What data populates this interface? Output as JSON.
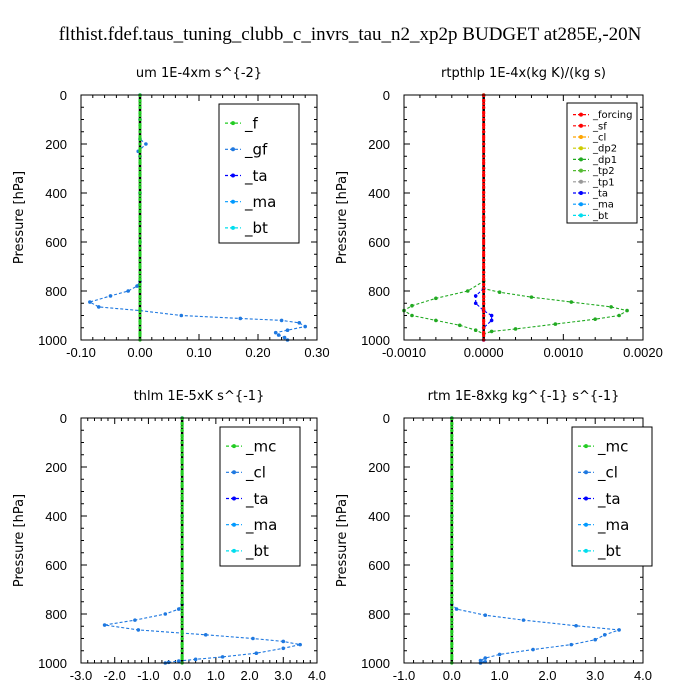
{
  "figure_title": "flthist.fdef.taus_tuning_clubb_c_invrs_tau_n2_xp2p  BUDGET at285E,-20N",
  "colors": {
    "forcing": "#ff0000",
    "sf": "#ff0000",
    "cl_orange": "#ffa500",
    "dp2": "#cccc00",
    "dp1": "#22aa22",
    "tp2": "#55bb33",
    "tp1": "#999999",
    "ta": "#0000ff",
    "ma": "#0099ff",
    "bt": "#00ddee",
    "mc": "#22cc22",
    "f": "#22cc22",
    "gf_cl_blue": "#1e78e0",
    "zero": "#000000"
  },
  "chart_data": [
    {
      "type": "line",
      "title": "um   1E-4xm s^{-2}",
      "ylabel": "Pressure [hPa]",
      "xlim": [
        -0.1,
        0.3
      ],
      "ylim": [
        1000,
        0
      ],
      "xticks": [
        "-0.10",
        "0.00",
        "0.10",
        "0.20",
        "0.30"
      ],
      "xtick_values": [
        -0.1,
        0.0,
        0.1,
        0.2,
        0.3
      ],
      "yticks": [
        "0",
        "200",
        "400",
        "600",
        "800",
        "1000"
      ],
      "ytick_values": [
        0,
        200,
        400,
        600,
        800,
        1000
      ],
      "legend": [
        "_f",
        "_gf",
        "_ta",
        "_ma",
        "_bt"
      ],
      "legend_size": "large",
      "series": [
        {
          "name": "_gf",
          "color_key": "gf_cl_blue",
          "points": [
            [
              0.0,
              0
            ],
            [
              0.0,
              100
            ],
            [
              0.0,
              180
            ],
            [
              0.01,
              200
            ],
            [
              -0.003,
              230
            ],
            [
              0.0,
              250
            ],
            [
              0.0,
              400
            ],
            [
              0.0,
              600
            ],
            [
              0.0,
              760
            ],
            [
              -0.005,
              780
            ],
            [
              -0.02,
              800
            ],
            [
              -0.05,
              820
            ],
            [
              -0.085,
              845
            ],
            [
              -0.07,
              865
            ],
            [
              0.0,
              880
            ],
            [
              0.07,
              900
            ],
            [
              0.17,
              912
            ],
            [
              0.24,
              920
            ],
            [
              0.27,
              930
            ],
            [
              0.28,
              945
            ],
            [
              0.25,
              960
            ],
            [
              0.23,
              970
            ],
            [
              0.235,
              980
            ],
            [
              0.245,
              990
            ],
            [
              0.25,
              1000
            ]
          ]
        },
        {
          "name": "_f",
          "color_key": "f",
          "points": [
            [
              0.0,
              0
            ],
            [
              0.0,
              200
            ],
            [
              0.0,
              400
            ],
            [
              0.0,
              600
            ],
            [
              0.0,
              800
            ],
            [
              0.0,
              1000
            ]
          ]
        }
      ]
    },
    {
      "type": "line",
      "title": "rtpthlp   1E-4x(kg K)/(kg s)",
      "ylabel": "Pressure [hPa]",
      "xlim": [
        -0.001,
        0.002
      ],
      "ylim": [
        1000,
        0
      ],
      "xticks": [
        "-0.0010",
        "0.0000",
        "0.0010",
        "0.0020"
      ],
      "xtick_values": [
        -0.001,
        0.0,
        0.001,
        0.002
      ],
      "yticks": [
        "0",
        "200",
        "400",
        "600",
        "800",
        "1000"
      ],
      "ytick_values": [
        0,
        200,
        400,
        600,
        800,
        1000
      ],
      "legend": [
        "_forcing",
        "_sf",
        "_cl",
        "_dp2",
        "_dp1",
        "_tp2",
        "_tp1",
        "_ta",
        "_ma",
        "_bt"
      ],
      "legend_size": "small",
      "series": [
        {
          "name": "_dp1",
          "color_key": "dp1",
          "points": [
            [
              0.0,
              0
            ],
            [
              0.0,
              500
            ],
            [
              0.0,
              760
            ],
            [
              -0.0002,
              800
            ],
            [
              -0.0006,
              830
            ],
            [
              -0.0009,
              860
            ],
            [
              -0.001,
              880
            ],
            [
              -0.0009,
              900
            ],
            [
              -0.0006,
              920
            ],
            [
              -0.0003,
              940
            ],
            [
              -0.0001,
              960
            ],
            [
              0.0,
              975
            ],
            [
              0.0001,
              965
            ],
            [
              0.0004,
              955
            ],
            [
              0.0009,
              935
            ],
            [
              0.0014,
              915
            ],
            [
              0.0017,
              900
            ],
            [
              0.0018,
              880
            ],
            [
              0.0016,
              865
            ],
            [
              0.0011,
              845
            ],
            [
              0.0006,
              825
            ],
            [
              0.0002,
              805
            ],
            [
              0.0,
              790
            ]
          ]
        },
        {
          "name": "_ta",
          "color_key": "ta",
          "points": [
            [
              0.0,
              790
            ],
            [
              -0.0001,
              820
            ],
            [
              -0.0001,
              850
            ],
            [
              0.0,
              880
            ],
            [
              0.0001,
              900
            ],
            [
              0.0001,
              920
            ],
            [
              0.0,
              950
            ],
            [
              0.0,
              1000
            ]
          ]
        },
        {
          "name": "_forcing",
          "color_key": "forcing",
          "points": [
            [
              0.0,
              0
            ],
            [
              0.0,
              200
            ],
            [
              0.0,
              400
            ],
            [
              0.0,
              600
            ],
            [
              0.0,
              800
            ],
            [
              0.0,
              1000
            ]
          ]
        }
      ]
    },
    {
      "type": "line",
      "title": "thlm   1E-5xK s^{-1}",
      "ylabel": "Pressure [hPa]",
      "xlim": [
        -3.0,
        4.0
      ],
      "ylim": [
        1000,
        0
      ],
      "xticks": [
        "-3.0",
        "-2.0",
        "-1.0",
        "0.0",
        "1.0",
        "2.0",
        "3.0",
        "4.0"
      ],
      "xtick_values": [
        -3,
        -2,
        -1,
        0,
        1,
        2,
        3,
        4
      ],
      "yticks": [
        "0",
        "200",
        "400",
        "600",
        "800",
        "1000"
      ],
      "ytick_values": [
        0,
        200,
        400,
        600,
        800,
        1000
      ],
      "legend": [
        "_mc",
        "_cl",
        "_ta",
        "_ma",
        "_bt"
      ],
      "legend_size": "large",
      "series": [
        {
          "name": "_cl",
          "color_key": "gf_cl_blue",
          "points": [
            [
              0.0,
              0
            ],
            [
              0.0,
              400
            ],
            [
              0.0,
              760
            ],
            [
              -0.1,
              780
            ],
            [
              -0.5,
              800
            ],
            [
              -1.4,
              825
            ],
            [
              -2.3,
              845
            ],
            [
              -1.3,
              865
            ],
            [
              0.7,
              885
            ],
            [
              2.1,
              900
            ],
            [
              3.0,
              912
            ],
            [
              3.5,
              925
            ],
            [
              3.0,
              940
            ],
            [
              2.2,
              960
            ],
            [
              1.2,
              975
            ],
            [
              0.4,
              985
            ],
            [
              -0.1,
              992
            ],
            [
              -0.4,
              997
            ],
            [
              -0.5,
              1000
            ]
          ]
        },
        {
          "name": "_mc",
          "color_key": "mc",
          "points": [
            [
              0.0,
              0
            ],
            [
              0.0,
              200
            ],
            [
              0.0,
              400
            ],
            [
              0.0,
              600
            ],
            [
              0.0,
              800
            ],
            [
              0.0,
              1000
            ]
          ]
        }
      ]
    },
    {
      "type": "line",
      "title": "rtm   1E-8xkg kg^{-1} s^{-1}",
      "ylabel": "Pressure [hPa]",
      "xlim": [
        -1.0,
        4.0
      ],
      "ylim": [
        1000,
        0
      ],
      "xticks": [
        "-1.0",
        "0.0",
        "1.0",
        "2.0",
        "3.0",
        "4.0"
      ],
      "xtick_values": [
        -1,
        0,
        1,
        2,
        3,
        4
      ],
      "yticks": [
        "0",
        "200",
        "400",
        "600",
        "800",
        "1000"
      ],
      "ytick_values": [
        0,
        200,
        400,
        600,
        800,
        1000
      ],
      "legend": [
        "_mc",
        "_cl",
        "_ta",
        "_ma",
        "_bt"
      ],
      "legend_size": "large",
      "series": [
        {
          "name": "_cl",
          "color_key": "gf_cl_blue",
          "points": [
            [
              0.0,
              0
            ],
            [
              0.0,
              400
            ],
            [
              0.0,
              760
            ],
            [
              0.1,
              780
            ],
            [
              0.7,
              805
            ],
            [
              1.5,
              825
            ],
            [
              2.6,
              848
            ],
            [
              3.5,
              865
            ],
            [
              3.2,
              885
            ],
            [
              3.0,
              905
            ],
            [
              2.5,
              925
            ],
            [
              1.7,
              945
            ],
            [
              1.0,
              965
            ],
            [
              0.7,
              980
            ],
            [
              0.6,
              990
            ],
            [
              0.7,
              995
            ],
            [
              0.6,
              1000
            ]
          ]
        },
        {
          "name": "_mc",
          "color_key": "mc",
          "points": [
            [
              0.0,
              0
            ],
            [
              0.0,
              200
            ],
            [
              0.0,
              400
            ],
            [
              0.0,
              600
            ],
            [
              0.0,
              800
            ],
            [
              0.0,
              1000
            ]
          ]
        }
      ]
    }
  ]
}
